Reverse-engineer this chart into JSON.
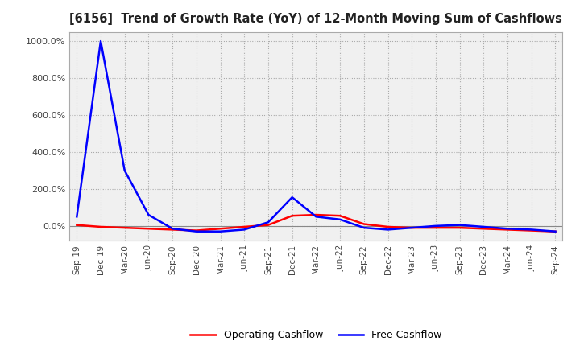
{
  "title": "[6156]  Trend of Growth Rate (YoY) of 12-Month Moving Sum of Cashflows",
  "background_color": "#ffffff",
  "plot_bg_color": "#f0f0f0",
  "grid_color": "#aaaaaa",
  "ylim": [
    -80,
    1050
  ],
  "yticks": [
    0,
    200,
    400,
    600,
    800,
    1000
  ],
  "ytick_labels": [
    "0.0%",
    "200.0%",
    "400.0%",
    "600.0%",
    "800.0%",
    "1000.0%"
  ],
  "x_labels": [
    "Sep-19",
    "Dec-19",
    "Mar-20",
    "Jun-20",
    "Sep-20",
    "Dec-20",
    "Mar-21",
    "Jun-21",
    "Sep-21",
    "Dec-21",
    "Mar-22",
    "Jun-22",
    "Sep-22",
    "Dec-22",
    "Mar-23",
    "Jun-23",
    "Sep-23",
    "Dec-23",
    "Mar-24",
    "Jun-24",
    "Sep-24"
  ],
  "operating_cashflow": [
    5,
    -5,
    -10,
    -15,
    -20,
    -25,
    -15,
    -5,
    5,
    55,
    60,
    55,
    10,
    -5,
    -10,
    -10,
    -10,
    -15,
    -20,
    -25,
    -30
  ],
  "free_cashflow": [
    50,
    1000,
    300,
    60,
    -15,
    -30,
    -30,
    -20,
    20,
    155,
    50,
    35,
    -10,
    -20,
    -10,
    0,
    5,
    -5,
    -15,
    -20,
    -30
  ],
  "op_color": "#ff0000",
  "free_color": "#0000ff",
  "line_width": 1.8
}
